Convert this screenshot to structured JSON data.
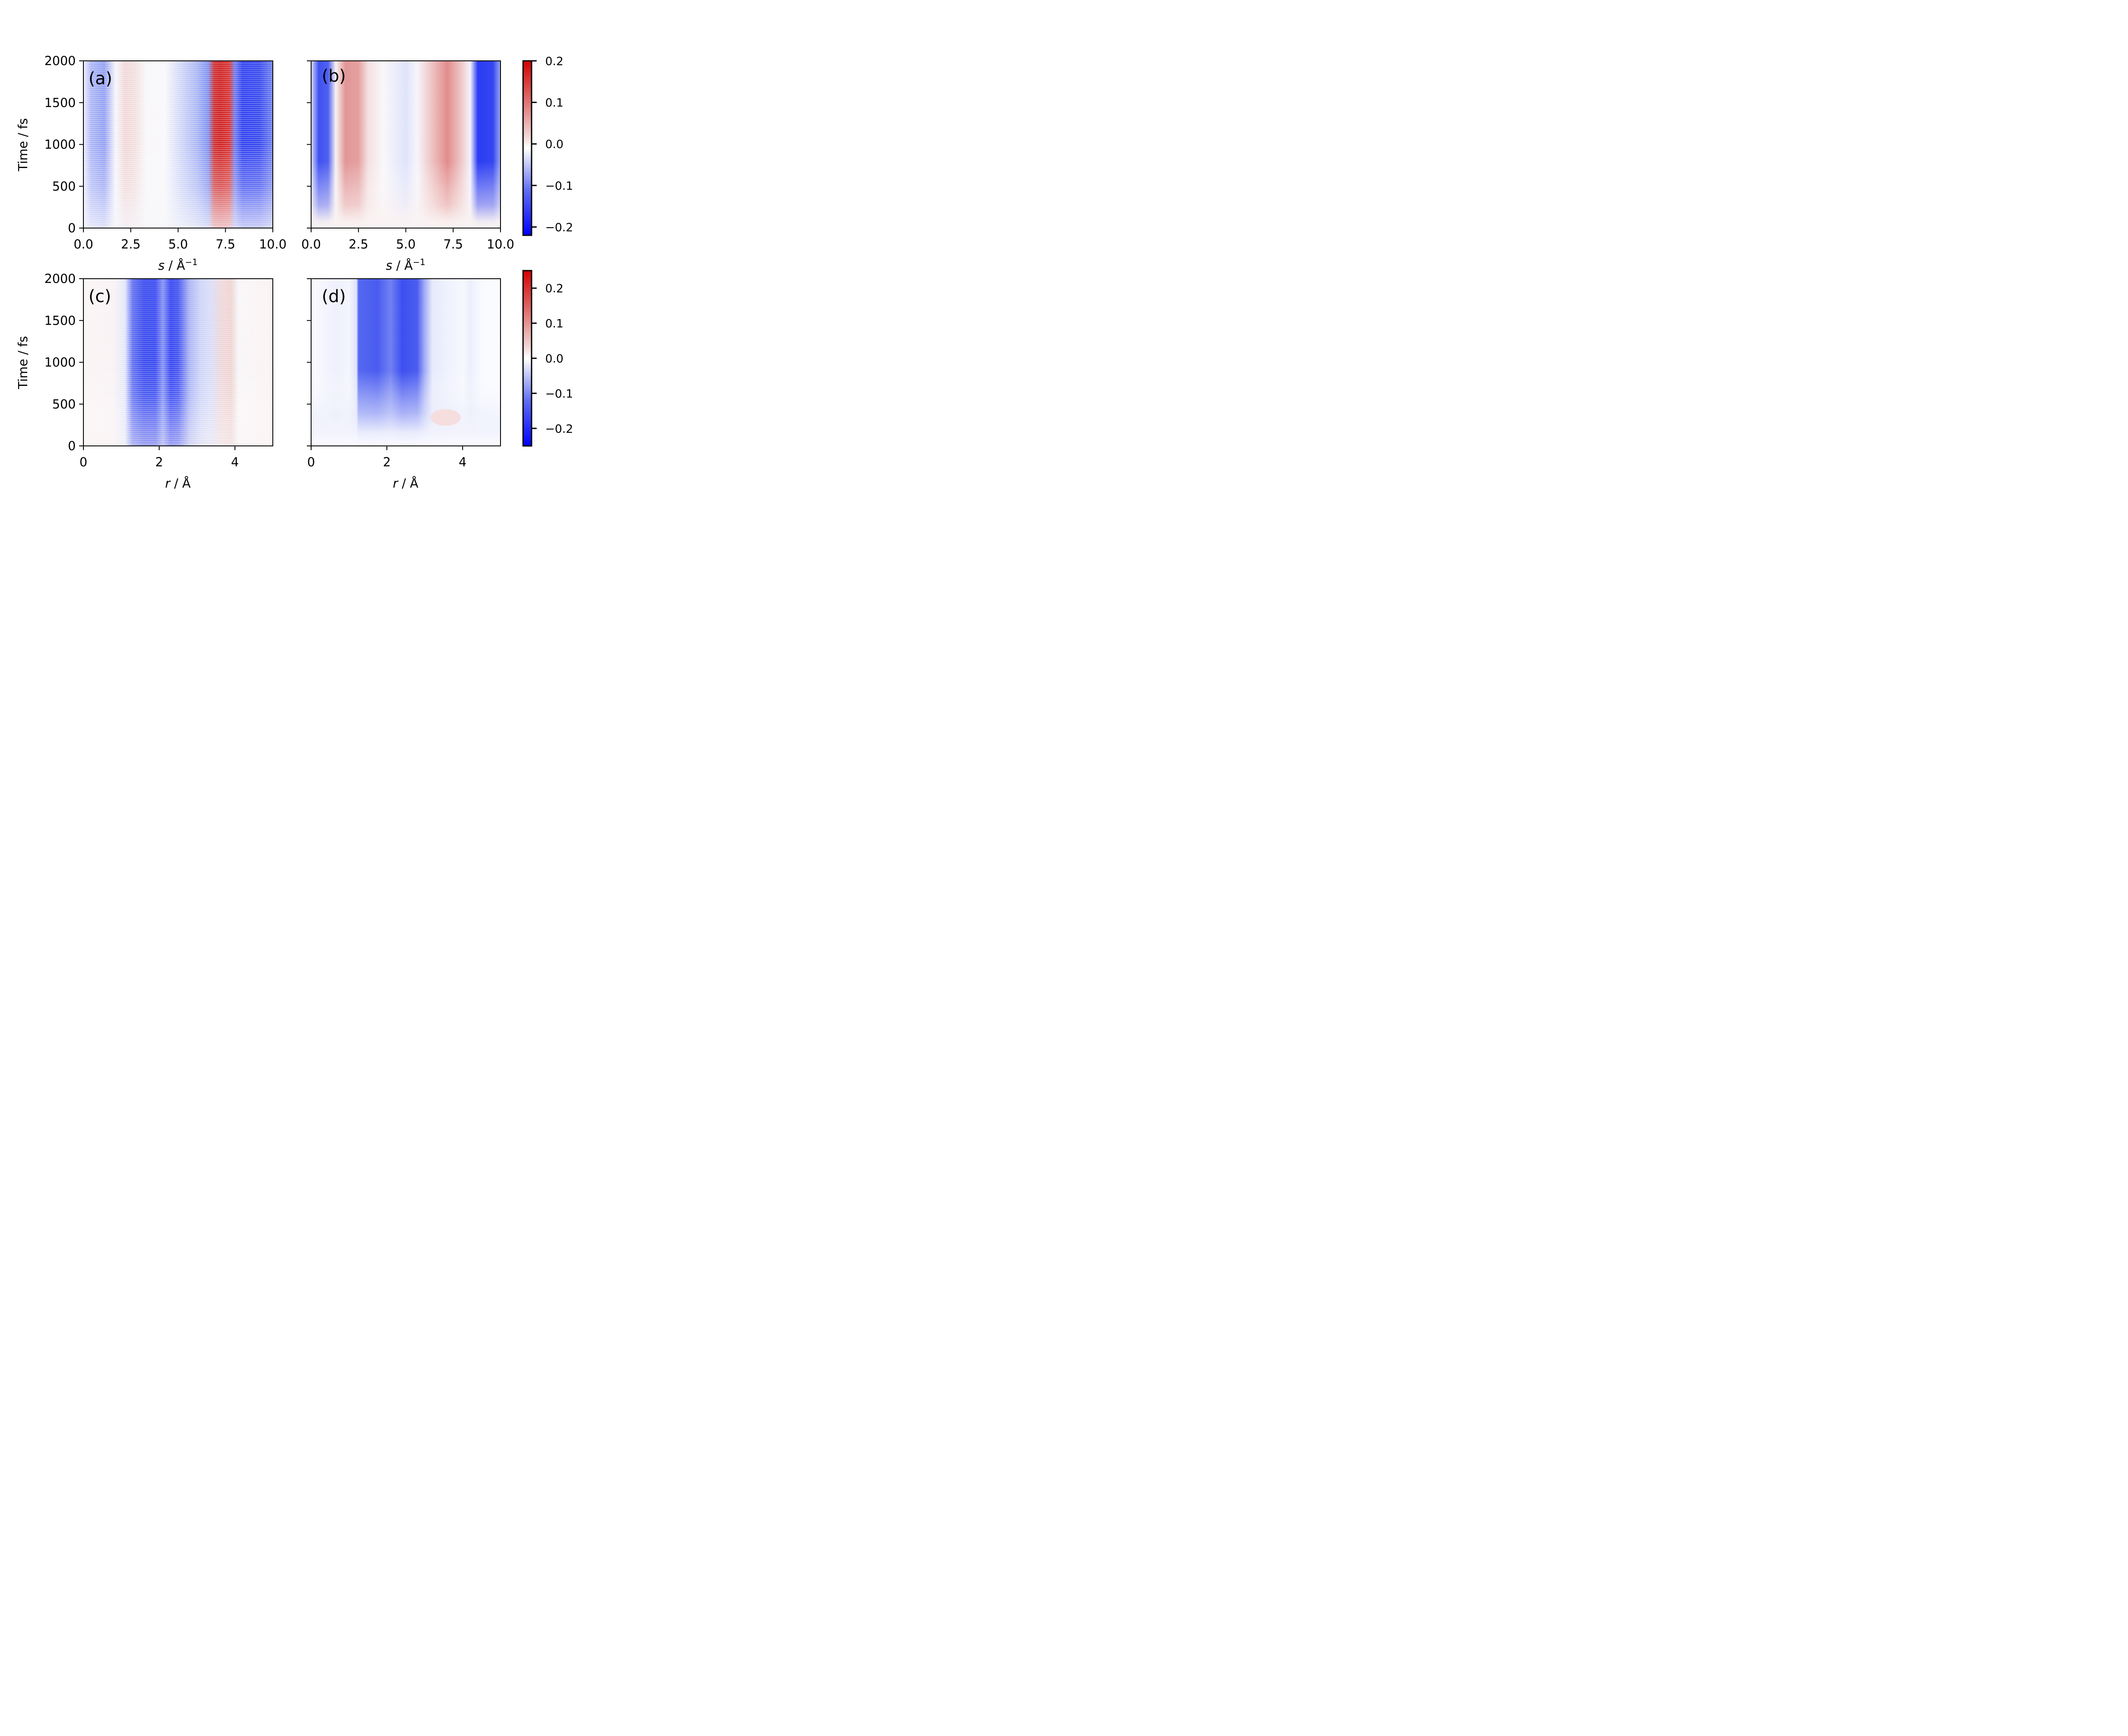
{
  "chart_data": [
    {
      "type": "heatmap",
      "panel_label": "(a)",
      "xlabel_var": "s",
      "xlabel_unit": " / Å",
      "xlabel_exp": "−1",
      "ylabel": "Time / fs",
      "xlim": [
        0,
        10
      ],
      "ylim": [
        0,
        2000
      ],
      "xticks": [
        0,
        2.5,
        5,
        7.5,
        10
      ],
      "xtick_labels": [
        "0.0",
        "2.5",
        "5.0",
        "7.5",
        "10.0"
      ],
      "yticks": [
        0,
        500,
        1000,
        1500,
        2000
      ],
      "ytick_labels": [
        "0",
        "500",
        "1000",
        "1500",
        "2000"
      ],
      "show_ytick_labels": true,
      "colorbar": 0,
      "colormap": "bwr",
      "description": "experimental-like signal with noise; dips near s≈0.5 and 9.5, peak near s≈7.5"
    },
    {
      "type": "heatmap",
      "panel_label": "(b)",
      "xlabel_var": "s",
      "xlabel_unit": " / Å",
      "xlabel_exp": "−1",
      "ylabel": "",
      "xlim": [
        0,
        10
      ],
      "ylim": [
        0,
        2000
      ],
      "xticks": [
        0,
        2.5,
        5,
        7.5,
        10
      ],
      "xtick_labels": [
        "0.0",
        "2.5",
        "5.0",
        "7.5",
        "10.0"
      ],
      "yticks": [
        0,
        500,
        1000,
        1500,
        2000
      ],
      "ytick_labels": [],
      "show_ytick_labels": false,
      "colorbar": 0,
      "colormap": "bwr",
      "description": "smooth theoretical signal; blue bands near s≈0.7 and 9.3, red bands near s≈2.2 and 7.2"
    },
    {
      "type": "heatmap",
      "panel_label": "(c)",
      "xlabel_var": "r",
      "xlabel_unit": " / Å",
      "xlabel_exp": "",
      "ylabel": "Time / fs",
      "xlim": [
        0,
        5
      ],
      "ylim": [
        0,
        2000
      ],
      "xticks": [
        0,
        2,
        4
      ],
      "xtick_labels": [
        "0",
        "2",
        "4"
      ],
      "yticks": [
        0,
        500,
        1000,
        1500,
        2000
      ],
      "ytick_labels": [
        "0",
        "500",
        "1000",
        "1500",
        "2000"
      ],
      "show_ytick_labels": true,
      "colorbar": 1,
      "colormap": "bwr",
      "description": "noisy real-space signal; strong blue bands near r≈1.5 and 2.3 Å"
    },
    {
      "type": "heatmap",
      "panel_label": "(d)",
      "xlabel_var": "r",
      "xlabel_unit": " / Å",
      "xlabel_exp": "",
      "ylabel": "",
      "xlim": [
        0,
        5
      ],
      "ylim": [
        0,
        2000
      ],
      "xticks": [
        0,
        2,
        4
      ],
      "xtick_labels": [
        "0",
        "2",
        "4"
      ],
      "yticks": [
        0,
        500,
        1000,
        1500,
        2000
      ],
      "ytick_labels": [],
      "show_ytick_labels": false,
      "colorbar": 1,
      "colormap": "bwr",
      "description": "smooth real-space signal; broad blue region r≈1.2–2.8 Å, faint red near r≈3.6 Å"
    }
  ],
  "colorbars": [
    {
      "vmin": -0.22,
      "vmax": 0.2,
      "ticks": [
        0.2,
        0.1,
        0.0,
        -0.1,
        -0.2
      ],
      "tick_labels": [
        "0.2",
        "0.1",
        "0.0",
        "−0.1",
        "−0.2"
      ],
      "colormap": "bwr"
    },
    {
      "vmin": -0.25,
      "vmax": 0.25,
      "ticks": [
        0.2,
        0.1,
        0.0,
        -0.1,
        -0.2
      ],
      "tick_labels": [
        "0.2",
        "0.1",
        "0.0",
        "−0.1",
        "−0.2"
      ],
      "colormap": "bwr"
    }
  ],
  "colors": {
    "negative": "#0000ff",
    "neutral": "#ffffff",
    "positive": "#cc0000"
  }
}
